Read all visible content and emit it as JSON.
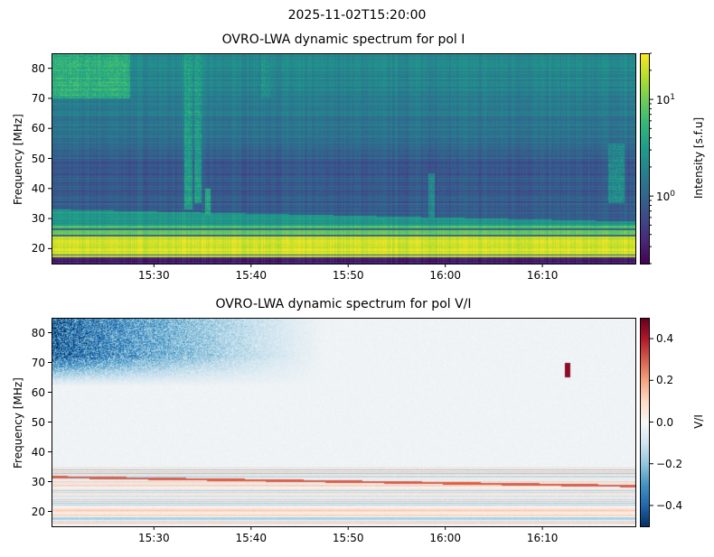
{
  "suptitle": "2025-11-02T15:20:00",
  "chart_data": [
    {
      "type": "heatmap",
      "title": "OVRO-LWA dynamic spectrum for pol I",
      "xlabel": "",
      "ylabel": "Frequency [MHz]",
      "x_range_minutes_after_1520": [
        0,
        60
      ],
      "xticks": [
        "15:30",
        "15:40",
        "15:50",
        "16:00",
        "16:10"
      ],
      "xtick_minutes": [
        10,
        20,
        30,
        40,
        50
      ],
      "ylim": [
        15,
        85
      ],
      "yticks": [
        20,
        30,
        40,
        50,
        60,
        70,
        80
      ],
      "colormap": "viridis",
      "colorbar": {
        "label": "Intensity [s.f.u]",
        "scale": "log",
        "range": [
          0.2,
          30
        ],
        "ticks": [
          "10^0",
          "10^1"
        ],
        "tick_values": [
          1,
          10
        ]
      },
      "bands": [
        {
          "freq": [
            15,
            17
          ],
          "value": 0.3
        },
        {
          "freq": [
            17,
            24
          ],
          "value": 20
        },
        {
          "freq": [
            24,
            27.5
          ],
          "value": 8
        },
        {
          "freq": [
            27.5,
            33
          ],
          "value": 3
        },
        {
          "freq": [
            33,
            50
          ],
          "value": 0.8
        },
        {
          "freq": [
            50,
            85
          ],
          "value": 1.6
        }
      ],
      "bursts": [
        {
          "minute": 2,
          "freq": [
            70,
            85
          ],
          "value": 6,
          "width": 6
        },
        {
          "minute": 14,
          "freq": [
            33,
            85
          ],
          "value": 4,
          "width": 0.4
        },
        {
          "minute": 15,
          "freq": [
            35,
            85
          ],
          "value": 4,
          "width": 0.4
        },
        {
          "minute": 16,
          "freq": [
            31,
            40
          ],
          "value": 5,
          "width": 0.3
        },
        {
          "minute": 22,
          "freq": [
            70,
            85
          ],
          "value": 3,
          "width": 0.5
        },
        {
          "minute": 39,
          "freq": [
            25,
            45
          ],
          "value": 3,
          "width": 0.3
        },
        {
          "minute": 58,
          "freq": [
            35,
            55
          ],
          "value": 3,
          "width": 0.8
        }
      ]
    },
    {
      "type": "heatmap",
      "title": "OVRO-LWA dynamic spectrum for pol V/I",
      "xlabel": "",
      "ylabel": "Frequency [MHz]",
      "x_range_minutes_after_1520": [
        0,
        60
      ],
      "xticks": [
        "15:30",
        "15:40",
        "15:50",
        "16:00",
        "16:10"
      ],
      "xtick_minutes": [
        10,
        20,
        30,
        40,
        50
      ],
      "ylim": [
        15,
        85
      ],
      "yticks": [
        20,
        30,
        40,
        50,
        60,
        70,
        80
      ],
      "colormap": "RdBu_r",
      "colorbar": {
        "label": "V/I",
        "scale": "linear",
        "range": [
          -0.5,
          0.5
        ],
        "ticks": [
          "−0.4",
          "−0.2",
          "0.0",
          "0.2",
          "0.4"
        ],
        "tick_values": [
          -0.4,
          -0.2,
          0,
          0.2,
          0.4
        ]
      },
      "features": [
        {
          "minute_range": [
            0,
            28
          ],
          "freq": [
            65,
            85
          ],
          "value": -0.35
        },
        {
          "minute_range": [
            0,
            60
          ],
          "freq": [
            17,
            35
          ],
          "value": "alternating ±0.3"
        },
        {
          "minute": 53,
          "freq": [
            65,
            70
          ],
          "value": 0.45
        }
      ]
    }
  ]
}
